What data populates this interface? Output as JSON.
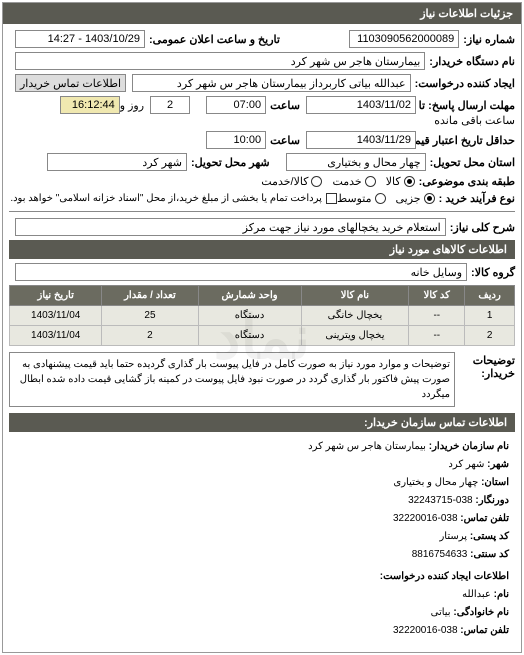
{
  "panel": {
    "title": "جزئیات اطلاعات نیاز"
  },
  "header": {
    "reqno_label": "شماره نیاز:",
    "reqno": "1103090562000089",
    "datetime_label": "تاریخ و ساعت اعلان عمومی:",
    "datetime": "1403/10/29 - 14:27",
    "buyer_label": "نام دستگاه خریدار:",
    "buyer": "بیمارستان هاجر س  شهر کرد",
    "creator_label": "ایجاد کننده درخواست:",
    "creator": "عبدالله بیاتی کاربرداز بیمارستان هاجر س  شهر کرد",
    "contact_btn": "اطلاعات تماس خریدار"
  },
  "deadlines": {
    "resp_label": "مهلت ارسال پاسخ: تا تاریخ:",
    "resp_date": "1403/11/02",
    "time_label": "ساعت",
    "resp_time": "07:00",
    "remain": "2",
    "remain_label2": "روز و",
    "remain_time": "16:12:44",
    "remain_label3": "ساعت باقی مانده",
    "valid_label": "حداقل تاریخ اعتبار قیمت: تا تاریخ:",
    "valid_date": "1403/11/29",
    "valid_time": "10:00"
  },
  "location": {
    "province_label": "استان محل تحویل:",
    "province": "چهار محال و بختیاری",
    "city_label": "شهر محل تحویل:",
    "city": "شهر کرد"
  },
  "classification": {
    "budget_label": "طبقه بندی موضوعی:",
    "opt_all": "کالا",
    "opt_service": "خدمت",
    "opt_both": "کالا/خدمت",
    "buytype_label": "نوع فرآیند خرید :",
    "bt_small": "جزیی",
    "bt_medium": "متوسط",
    "bt_note": "پرداخت تمام یا بخشی از مبلغ خرید،از محل \"اسناد خزانه اسلامی\" خواهد بود."
  },
  "need": {
    "keyword_label": "شرح کلی نیاز:",
    "keyword": "استعلام خرید یخچالهای مورد نیاز جهت مرکز"
  },
  "items_title": "اطلاعات کالاهای مورد نیاز",
  "group": {
    "label": "گروه کالا:",
    "value": "وسایل خانه"
  },
  "table": {
    "cols": [
      "ردیف",
      "کد کالا",
      "نام کالا",
      "واحد شمارش",
      "تعداد / مقدار",
      "تاریخ نیاز"
    ],
    "rows": [
      [
        "1",
        "--",
        "یخچال خانگی",
        "دستگاه",
        "25",
        "1403/11/04"
      ],
      [
        "2",
        "--",
        "یخچال ویترینی",
        "دستگاه",
        "2",
        "1403/11/04"
      ]
    ]
  },
  "description": {
    "label": "توضیحات خریدار:",
    "text": "توضیحات و موارد مورد نیاز به صورت کامل در فایل پیوست بار گذاری گردیده حتما باید قیمت پیشنهادی به صورت پیش فاکتور بار گذاری گردد در صورت نبود فایل پیوست در کمینه باز گشایی قیمت داده شده ابطال میگردد"
  },
  "contact": {
    "title": "اطلاعات تماس سازمان خریدار:",
    "org_label": "نام سازمان خریدار:",
    "org": "بیمارستان هاجر س شهر کرد",
    "city_label": "شهر:",
    "city": "شهر کرد",
    "province_label": "استان:",
    "province": "چهار محال و بختیاری",
    "fax_label": "دورنگار:",
    "fax": "038-32243715",
    "phone_label": "تلفن تماس:",
    "phone": "038-32220016",
    "postal_label": "کد پستی:",
    "postal": "پرستار",
    "econ_label": "کد سنتی:",
    "econ": "8816754633",
    "req_creator_title": "اطلاعات ایجاد کننده درخواست:",
    "name_label": "نام:",
    "name": "عبدالله",
    "lname_label": "نام خانوادگی:",
    "lname": "بیاتی",
    "cphone_label": "تلفن تماس:",
    "cphone": "038-32220016"
  }
}
